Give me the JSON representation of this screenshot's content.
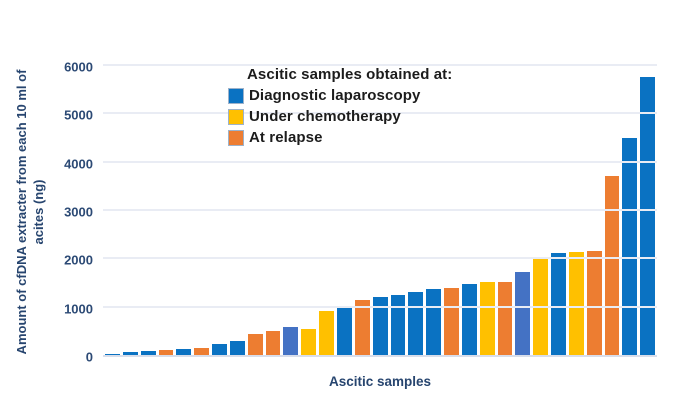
{
  "chart_data": {
    "type": "bar",
    "title": "",
    "xlabel": "Ascitic samples",
    "ylabel": "Amount of cfDNA extracter from each 10 ml of acites (ng)",
    "ylabel_lines": [
      "Amount of cfDNA extracter from each 10 ml of",
      "acites (ng)"
    ],
    "ylim": [
      0,
      6000
    ],
    "yticks": [
      0,
      1000,
      2000,
      3000,
      4000,
      5000,
      6000
    ],
    "grid": "horizontal-only",
    "legend": {
      "title": "Ascitic samples obtained at:",
      "position": "inside-top-center",
      "entries": [
        {
          "label": "Diagnostic laparoscopy",
          "color_key": "blue"
        },
        {
          "label": "Under chemotherapy",
          "color_key": "yellow"
        },
        {
          "label": "At relapse",
          "color_key": "orange"
        }
      ]
    },
    "colors": {
      "blue": "#0a72c2",
      "yellow": "#ffc000",
      "orange": "#ed7d31",
      "light_blue": "#4472c4"
    },
    "points": [
      {
        "value": 30,
        "color_key": "blue"
      },
      {
        "value": 55,
        "color_key": "blue"
      },
      {
        "value": 80,
        "color_key": "blue"
      },
      {
        "value": 110,
        "color_key": "orange"
      },
      {
        "value": 130,
        "color_key": "blue"
      },
      {
        "value": 155,
        "color_key": "orange"
      },
      {
        "value": 230,
        "color_key": "blue"
      },
      {
        "value": 290,
        "color_key": "blue"
      },
      {
        "value": 440,
        "color_key": "orange"
      },
      {
        "value": 500,
        "color_key": "orange"
      },
      {
        "value": 570,
        "color_key": "light_blue"
      },
      {
        "value": 545,
        "color_key": "yellow"
      },
      {
        "value": 910,
        "color_key": "yellow"
      },
      {
        "value": 1000,
        "color_key": "blue"
      },
      {
        "value": 1140,
        "color_key": "orange"
      },
      {
        "value": 1210,
        "color_key": "blue"
      },
      {
        "value": 1250,
        "color_key": "blue"
      },
      {
        "value": 1310,
        "color_key": "blue"
      },
      {
        "value": 1360,
        "color_key": "blue"
      },
      {
        "value": 1380,
        "color_key": "orange"
      },
      {
        "value": 1460,
        "color_key": "blue"
      },
      {
        "value": 1510,
        "color_key": "yellow"
      },
      {
        "value": 1515,
        "color_key": "orange"
      },
      {
        "value": 1720,
        "color_key": "light_blue"
      },
      {
        "value": 1980,
        "color_key": "yellow"
      },
      {
        "value": 2120,
        "color_key": "blue"
      },
      {
        "value": 2130,
        "color_key": "yellow"
      },
      {
        "value": 2150,
        "color_key": "orange"
      },
      {
        "value": 3700,
        "color_key": "orange"
      },
      {
        "value": 4480,
        "color_key": "blue"
      },
      {
        "value": 5750,
        "color_key": "blue"
      }
    ]
  }
}
